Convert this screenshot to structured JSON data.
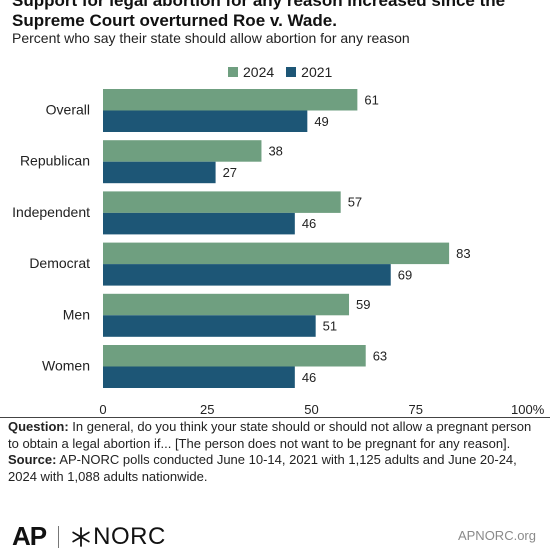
{
  "title": {
    "line1": "Support for legal abortion for any reason increased since the",
    "line2": "Supreme Court overturned Roe v. Wade."
  },
  "subtitle": "Percent who say their state should allow abortion for any reason",
  "colors": {
    "series_2024": "#6f9f80",
    "series_2021": "#1d5676"
  },
  "chart_data": {
    "type": "bar",
    "orientation": "horizontal",
    "categories": [
      "Overall",
      "Republican",
      "Independent",
      "Democrat",
      "Men",
      "Women"
    ],
    "series": [
      {
        "name": "2024",
        "color": "#6f9f80",
        "values": [
          61,
          38,
          57,
          83,
          59,
          63
        ]
      },
      {
        "name": "2021",
        "color": "#1d5676",
        "values": [
          49,
          27,
          46,
          69,
          51,
          46
        ]
      }
    ],
    "xlim": [
      0,
      100
    ],
    "xticks": [
      "0",
      "25",
      "50",
      "75",
      "100%"
    ],
    "legend_position": "top-center",
    "grid": false
  },
  "notes": {
    "question_label": "Question:",
    "question_text": "In general, do you think your state should or should not allow a pregnant person to obtain a legal abortion if... [The person does not want to be pregnant for any reason].",
    "source_label": "Source:",
    "source_text": "AP-NORC polls conducted June 10-14, 2021 with 1,125 adults and June 20-24, 2024 with 1,088 adults nationwide."
  },
  "footer": {
    "ap_logo": "AP",
    "norc_logo": "NORC",
    "site": "APNORC.org"
  }
}
